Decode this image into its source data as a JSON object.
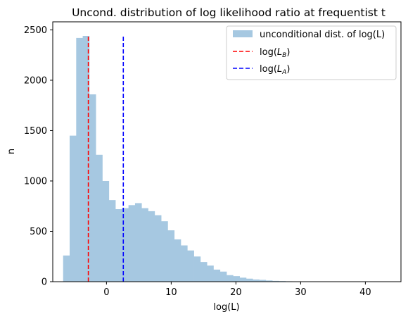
{
  "chart_data": {
    "type": "bar",
    "title": "Uncond. distribution of log likelihood ratio at frequentist  t",
    "xlabel": "log(L)",
    "ylabel": "n",
    "xlim": [
      -8.3,
      45.5
    ],
    "ylim": [
      0,
      2580
    ],
    "xticks": [
      0,
      10,
      20,
      30,
      40
    ],
    "yticks": [
      0,
      500,
      1000,
      1500,
      2000,
      2500
    ],
    "grid": false,
    "legend_position": "top-right",
    "histogram": {
      "name": "unconditional dist. of log(L)",
      "color": "#a6c8e1",
      "bin_width": 1.01,
      "bin_start": -6.7,
      "counts": [
        260,
        1450,
        2420,
        2440,
        1860,
        1260,
        1000,
        810,
        720,
        730,
        760,
        780,
        730,
        700,
        660,
        600,
        510,
        420,
        360,
        310,
        250,
        195,
        160,
        120,
        100,
        65,
        55,
        40,
        30,
        22,
        18,
        12,
        8,
        6,
        4,
        3,
        3,
        2,
        2,
        2,
        1,
        1,
        1,
        1,
        1,
        1,
        1,
        1,
        1,
        1
      ]
    },
    "vlines": [
      {
        "name": "log($L_B$)",
        "label_main": "log(",
        "label_sym": "L",
        "label_sub": "B",
        "label_end": ")",
        "x": -2.8,
        "ymax": 2440,
        "color": "#ff0000"
      },
      {
        "name": "log($L_A$)",
        "label_main": "log(",
        "label_sym": "L",
        "label_sub": "A",
        "label_end": ")",
        "x": 2.6,
        "ymax": 2440,
        "color": "#0000ff"
      }
    ]
  }
}
